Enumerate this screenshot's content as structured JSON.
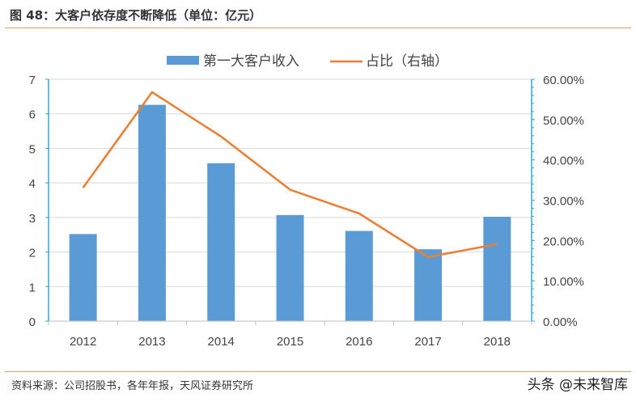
{
  "header": {
    "title": "图 48：大客户依存度不断降低（单位：亿元）"
  },
  "footer": {
    "source": "资料来源：公司招股书，各年年报，天风证券研究所",
    "watermark": "头条 @未来智库"
  },
  "chart_data": {
    "type": "bar+line",
    "title": "",
    "categories": [
      "2012",
      "2013",
      "2014",
      "2015",
      "2016",
      "2017",
      "2018"
    ],
    "series": [
      {
        "name": "第一大客户收入",
        "type": "bar",
        "axis": "left",
        "color": "#5b9bd5",
        "values": [
          2.52,
          6.26,
          4.57,
          3.07,
          2.61,
          2.08,
          3.02
        ]
      },
      {
        "name": "占比（右轴）",
        "type": "line",
        "axis": "right",
        "color": "#ed7d31",
        "values": [
          33.1,
          56.8,
          45.8,
          32.6,
          26.7,
          15.9,
          19.1
        ]
      }
    ],
    "y_left": {
      "range": [
        0,
        7
      ],
      "ticks": [
        "0",
        "1",
        "2",
        "3",
        "4",
        "5",
        "6",
        "7"
      ]
    },
    "y_right": {
      "range": [
        0,
        60
      ],
      "ticks": [
        "0.00%",
        "10.00%",
        "20.00%",
        "30.00%",
        "40.00%",
        "50.00%",
        "60.00%"
      ]
    },
    "grid": true,
    "legend": "top-center",
    "axis_color": "#29a9e0"
  }
}
